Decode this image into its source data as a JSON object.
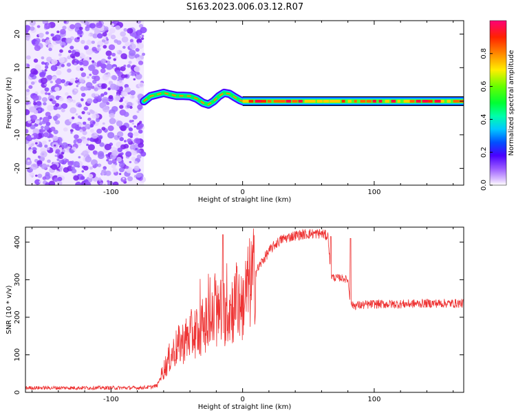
{
  "title": "S163.2023.006.03.12.R07",
  "chart_data": [
    {
      "type": "heatmap",
      "xlabel": "Height of straight line (km)",
      "ylabel": "Frequency (Hz)",
      "xlim": [
        -165,
        168
      ],
      "ylim": [
        -25,
        24
      ],
      "xticks": [
        -100,
        0,
        100
      ],
      "yticks": [
        -20,
        -10,
        0,
        10,
        20
      ],
      "grid": false,
      "colorbar": {
        "label": "Normalized spectral amplitude",
        "range": [
          0,
          1
        ],
        "ticks": [
          "0.0",
          "0.2",
          "0.4",
          "0.6",
          "0.8"
        ],
        "colors": [
          "#ffffff",
          "#d6b8ff",
          "#8a2be2",
          "#4400ff",
          "#0044ff",
          "#00e5ff",
          "#00ff66",
          "#66ff00",
          "#ffff00",
          "#ff8800",
          "#ff2200",
          "#ff0066"
        ]
      },
      "features": [
        {
          "name": "noise",
          "x_range": [
            -165,
            -75
          ],
          "y_range": [
            -25,
            24
          ],
          "amplitude": 0.1
        },
        {
          "name": "signal",
          "x_range": [
            -75,
            168
          ],
          "frequency": 0,
          "amplitude": 0.9
        }
      ]
    },
    {
      "type": "line",
      "xlabel": "Height of straight line (km)",
      "ylabel": "SNR (10 * v/v)",
      "xlim": [
        -165,
        168
      ],
      "ylim": [
        0,
        440
      ],
      "xticks": [
        -100,
        0,
        100
      ],
      "yticks": [
        0,
        100,
        200,
        300,
        400
      ],
      "color": "#ee3333",
      "x": [
        -165,
        -140,
        -120,
        -100,
        -80,
        -70,
        -65,
        -60,
        -55,
        -50,
        -45,
        -40,
        -35,
        -30,
        -25,
        -20,
        -15,
        -10,
        -5,
        0,
        5,
        10,
        15,
        20,
        25,
        30,
        40,
        50,
        60,
        65,
        67,
        70,
        75,
        80,
        82,
        84,
        90,
        100,
        120,
        140,
        168
      ],
      "y": [
        12,
        12,
        12,
        12,
        12,
        14,
        18,
        60,
        95,
        120,
        135,
        150,
        165,
        175,
        185,
        200,
        215,
        220,
        235,
        240,
        285,
        320,
        350,
        375,
        395,
        408,
        418,
        422,
        423,
        415,
        310,
        305,
        305,
        300,
        235,
        232,
        232,
        235,
        235,
        237,
        237
      ]
    }
  ]
}
